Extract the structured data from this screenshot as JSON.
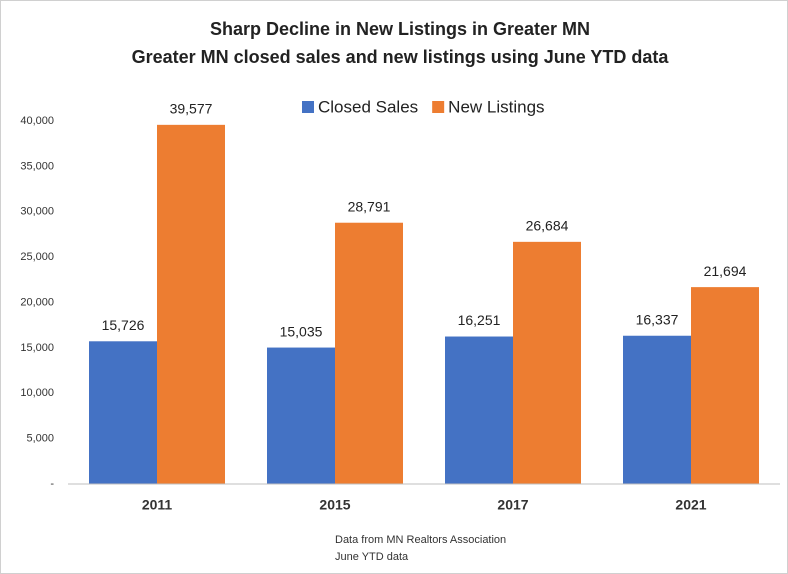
{
  "chart_data": {
    "type": "bar",
    "title": "Sharp Decline in New Listings in Greater MN",
    "subtitle": "Greater MN closed sales and new listings using June YTD data",
    "categories": [
      "2011",
      "2015",
      "2017",
      "2021"
    ],
    "series": [
      {
        "name": "Closed Sales",
        "color": "#4472c4",
        "values": [
          15726,
          15035,
          16251,
          16337
        ],
        "value_labels": [
          "15,726",
          "15,035",
          "16,251",
          "16,337"
        ]
      },
      {
        "name": "New Listings",
        "color": "#ed7d31",
        "values": [
          39577,
          28791,
          26684,
          21694
        ],
        "value_labels": [
          "39,577",
          "28,791",
          "26,684",
          "21,694"
        ]
      }
    ],
    "ylim": [
      0,
      40000
    ],
    "yticks": [
      {
        "value": 0,
        "label": "-"
      },
      {
        "value": 5000,
        "label": "5,000"
      },
      {
        "value": 10000,
        "label": "10,000"
      },
      {
        "value": 15000,
        "label": "15,000"
      },
      {
        "value": 20000,
        "label": "20,000"
      },
      {
        "value": 25000,
        "label": "25,000"
      },
      {
        "value": 30000,
        "label": "30,000"
      },
      {
        "value": 35000,
        "label": "35,000"
      },
      {
        "value": 40000,
        "label": "40,000"
      }
    ],
    "grid": false,
    "legend": "top",
    "notes": [
      "Data from MN Realtors Association",
      "June YTD data"
    ]
  }
}
